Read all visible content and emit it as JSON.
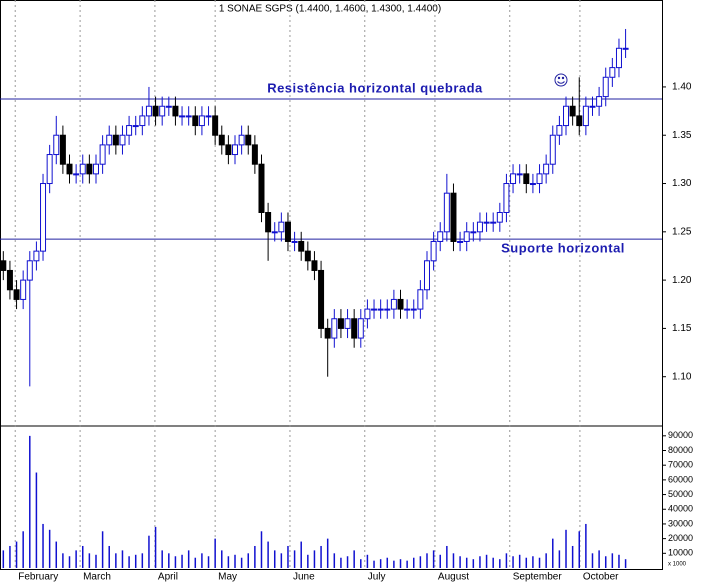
{
  "chart_data": {
    "type": "candlestick",
    "title": "1 SONAE SGPS (1.4400, 1.4600, 1.4300, 1.4400)",
    "up_color": "#1010d0",
    "down_color": "#000000",
    "volume_color": "#1010d0",
    "line_color": "#2020a0",
    "xlim": [
      0,
      100
    ],
    "xticks": [
      {
        "value": 2.3,
        "label": "February"
      },
      {
        "value": 12.1,
        "label": "March"
      },
      {
        "value": 23.4,
        "label": "April"
      },
      {
        "value": 32.5,
        "label": "May"
      },
      {
        "value": 43.8,
        "label": "June"
      },
      {
        "value": 55.1,
        "label": "July"
      },
      {
        "value": 65.7,
        "label": "August"
      },
      {
        "value": 77.0,
        "label": "September"
      },
      {
        "value": 87.6,
        "label": "October"
      }
    ],
    "ylim": [
      1.05,
      1.49
    ],
    "yticks": [
      {
        "value": 1.1,
        "label": "1.10"
      },
      {
        "value": 1.15,
        "label": "1.15"
      },
      {
        "value": 1.2,
        "label": "1.20"
      },
      {
        "value": 1.25,
        "label": "1.25"
      },
      {
        "value": 1.3,
        "label": "1.30"
      },
      {
        "value": 1.35,
        "label": "1.35"
      },
      {
        "value": 1.4,
        "label": "1.40"
      }
    ],
    "y2lim": [
      0,
      96000
    ],
    "y2ticks": [
      10000,
      20000,
      30000,
      40000,
      50000,
      60000,
      70000,
      80000,
      90000
    ],
    "y2_note": "x 1000",
    "hlines": [
      {
        "value": 1.3875,
        "label": "Resistência horizontal quebrada"
      },
      {
        "value": 1.2425,
        "label": "Suporte horizontal"
      }
    ],
    "open": [
      1.22,
      1.21,
      1.19,
      1.18,
      1.2,
      1.22,
      1.23,
      1.3,
      1.33,
      1.35,
      1.32,
      1.31,
      1.31,
      1.32,
      1.31,
      1.32,
      1.34,
      1.35,
      1.34,
      1.35,
      1.36,
      1.36,
      1.37,
      1.38,
      1.37,
      1.38,
      1.38,
      1.37,
      1.37,
      1.37,
      1.36,
      1.37,
      1.37,
      1.35,
      1.34,
      1.33,
      1.34,
      1.35,
      1.34,
      1.32,
      1.27,
      1.25,
      1.25,
      1.26,
      1.24,
      1.24,
      1.23,
      1.22,
      1.21,
      1.15,
      1.14,
      1.16,
      1.15,
      1.16,
      1.14,
      1.16,
      1.17,
      1.17,
      1.17,
      1.17,
      1.18,
      1.17,
      1.17,
      1.17,
      1.19,
      1.22,
      1.24,
      1.25,
      1.29,
      1.24,
      1.24,
      1.25,
      1.25,
      1.26,
      1.26,
      1.26,
      1.27,
      1.3,
      1.31,
      1.31,
      1.3,
      1.3,
      1.31,
      1.32,
      1.35,
      1.36,
      1.38,
      1.37,
      1.36,
      1.38,
      1.38,
      1.39,
      1.41,
      1.42,
      1.44
    ],
    "high": [
      1.23,
      1.22,
      1.2,
      1.21,
      1.23,
      1.24,
      1.31,
      1.34,
      1.37,
      1.36,
      1.33,
      1.32,
      1.33,
      1.33,
      1.33,
      1.35,
      1.36,
      1.36,
      1.36,
      1.37,
      1.37,
      1.38,
      1.4,
      1.39,
      1.39,
      1.39,
      1.39,
      1.38,
      1.38,
      1.38,
      1.38,
      1.38,
      1.38,
      1.36,
      1.35,
      1.35,
      1.36,
      1.36,
      1.35,
      1.33,
      1.28,
      1.26,
      1.27,
      1.27,
      1.25,
      1.25,
      1.24,
      1.23,
      1.22,
      1.16,
      1.17,
      1.17,
      1.17,
      1.17,
      1.17,
      1.18,
      1.18,
      1.18,
      1.18,
      1.19,
      1.19,
      1.18,
      1.18,
      1.2,
      1.23,
      1.25,
      1.26,
      1.31,
      1.3,
      1.25,
      1.26,
      1.26,
      1.27,
      1.27,
      1.27,
      1.28,
      1.31,
      1.32,
      1.32,
      1.32,
      1.31,
      1.32,
      1.33,
      1.36,
      1.37,
      1.39,
      1.39,
      1.41,
      1.39,
      1.39,
      1.4,
      1.42,
      1.43,
      1.45,
      1.46
    ],
    "low": [
      1.2,
      1.18,
      1.17,
      1.17,
      1.09,
      1.21,
      1.22,
      1.29,
      1.32,
      1.31,
      1.3,
      1.3,
      1.3,
      1.3,
      1.3,
      1.31,
      1.33,
      1.33,
      1.33,
      1.34,
      1.35,
      1.35,
      1.36,
      1.36,
      1.36,
      1.37,
      1.36,
      1.36,
      1.36,
      1.35,
      1.35,
      1.36,
      1.34,
      1.33,
      1.32,
      1.32,
      1.33,
      1.33,
      1.31,
      1.26,
      1.22,
      1.24,
      1.24,
      1.23,
      1.23,
      1.22,
      1.21,
      1.2,
      1.14,
      1.1,
      1.13,
      1.14,
      1.14,
      1.13,
      1.13,
      1.15,
      1.16,
      1.16,
      1.16,
      1.16,
      1.16,
      1.16,
      1.16,
      1.16,
      1.18,
      1.21,
      1.23,
      1.24,
      1.23,
      1.23,
      1.23,
      1.24,
      1.24,
      1.25,
      1.25,
      1.25,
      1.26,
      1.29,
      1.3,
      1.29,
      1.29,
      1.29,
      1.3,
      1.31,
      1.34,
      1.35,
      1.36,
      1.35,
      1.35,
      1.37,
      1.37,
      1.38,
      1.4,
      1.41,
      1.43
    ],
    "close": [
      1.21,
      1.19,
      1.18,
      1.2,
      1.22,
      1.23,
      1.3,
      1.33,
      1.35,
      1.32,
      1.31,
      1.31,
      1.32,
      1.31,
      1.32,
      1.34,
      1.35,
      1.34,
      1.35,
      1.36,
      1.36,
      1.37,
      1.38,
      1.37,
      1.38,
      1.38,
      1.37,
      1.37,
      1.37,
      1.36,
      1.37,
      1.37,
      1.35,
      1.34,
      1.33,
      1.34,
      1.35,
      1.34,
      1.32,
      1.27,
      1.25,
      1.25,
      1.26,
      1.24,
      1.24,
      1.23,
      1.22,
      1.21,
      1.15,
      1.14,
      1.16,
      1.15,
      1.16,
      1.14,
      1.16,
      1.17,
      1.17,
      1.17,
      1.17,
      1.18,
      1.17,
      1.17,
      1.17,
      1.19,
      1.22,
      1.24,
      1.25,
      1.29,
      1.24,
      1.24,
      1.25,
      1.25,
      1.26,
      1.26,
      1.26,
      1.27,
      1.3,
      1.31,
      1.31,
      1.3,
      1.3,
      1.31,
      1.32,
      1.35,
      1.36,
      1.38,
      1.37,
      1.36,
      1.38,
      1.38,
      1.39,
      1.41,
      1.42,
      1.44,
      1.44
    ],
    "volume": [
      12000,
      15000,
      18000,
      25000,
      90000,
      65000,
      30000,
      26000,
      18000,
      10000,
      8000,
      12000,
      15000,
      10000,
      9000,
      25000,
      15000,
      10000,
      12000,
      8000,
      9000,
      10000,
      22000,
      28000,
      12000,
      10000,
      8000,
      9000,
      12000,
      7000,
      10000,
      8000,
      20000,
      12000,
      8000,
      9000,
      7000,
      10000,
      15000,
      25000,
      18000,
      12000,
      10000,
      15000,
      12000,
      18000,
      9000,
      12000,
      15000,
      20000,
      10000,
      7000,
      8000,
      12000,
      6000,
      9000,
      5000,
      6000,
      7000,
      5000,
      6000,
      5000,
      7000,
      8000,
      10000,
      12000,
      9000,
      15000,
      10000,
      8000,
      7000,
      6000,
      8000,
      9000,
      7000,
      6000,
      10000,
      8000,
      9000,
      7000,
      8000,
      7000,
      10000,
      20000,
      12000,
      26000,
      15000,
      25000,
      30000,
      10000,
      12000,
      8000,
      10000,
      9000,
      6000
    ]
  }
}
